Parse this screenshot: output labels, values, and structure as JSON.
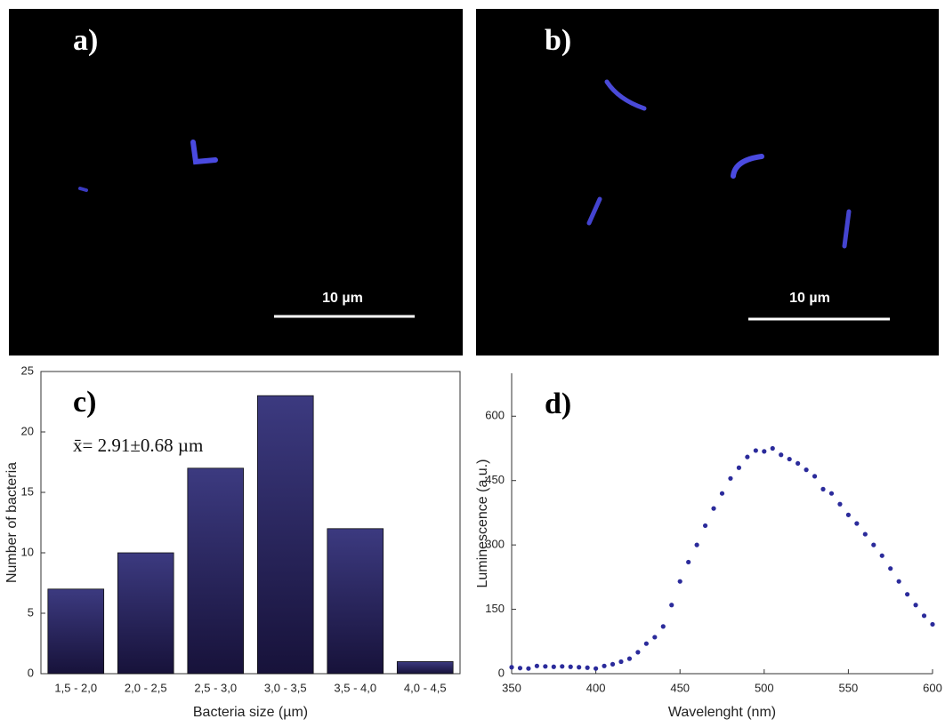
{
  "images": [
    {
      "label": "a)",
      "scale_bar": "10 µm"
    },
    {
      "label": "b)",
      "scale_bar": "10 µm"
    }
  ],
  "chart_data": [
    {
      "type": "bar",
      "label": "c)",
      "annotation": "x̄= 2.91±0.68 µm",
      "x_label": "Bacteria size (µm)",
      "y_label": "Number of bacteria",
      "categories": [
        "1,5 - 2,0",
        "2,0 - 2,5",
        "2,5 - 3,0",
        "3,0 - 3,5",
        "3,5 - 4,0",
        "4,0 - 4,5"
      ],
      "values": [
        7,
        10,
        17,
        23,
        12,
        1
      ],
      "color": "#2e2a6a",
      "ylim": [
        0,
        25
      ],
      "yticks": [
        0,
        5,
        10,
        15,
        20,
        25
      ]
    },
    {
      "type": "line",
      "label": "d)",
      "x_label": "Wavelenght (nm)",
      "y_label": "Luminescence (a.u.)",
      "color": "#2b2b9b",
      "x": [
        350,
        355,
        360,
        365,
        370,
        375,
        380,
        385,
        390,
        395,
        400,
        405,
        410,
        415,
        420,
        425,
        430,
        435,
        440,
        445,
        450,
        455,
        460,
        465,
        470,
        475,
        480,
        485,
        490,
        495,
        500,
        505,
        510,
        515,
        520,
        525,
        530,
        535,
        540,
        545,
        550,
        555,
        560,
        565,
        570,
        575,
        580,
        585,
        590,
        595,
        600
      ],
      "values": [
        15,
        13,
        12,
        18,
        17,
        16,
        17,
        16,
        15,
        14,
        12,
        18,
        22,
        28,
        35,
        50,
        70,
        85,
        110,
        160,
        215,
        260,
        300,
        345,
        385,
        420,
        455,
        480,
        505,
        520,
        518,
        525,
        510,
        500,
        490,
        475,
        460,
        430,
        420,
        395,
        370,
        350,
        325,
        300,
        275,
        245,
        215,
        185,
        160,
        135,
        115
      ],
      "xlim": [
        350,
        600
      ],
      "xticks": [
        350,
        400,
        450,
        500,
        550,
        600
      ],
      "ylim": [
        0,
        700
      ],
      "yticks": [
        0,
        150,
        300,
        450,
        600
      ]
    }
  ]
}
